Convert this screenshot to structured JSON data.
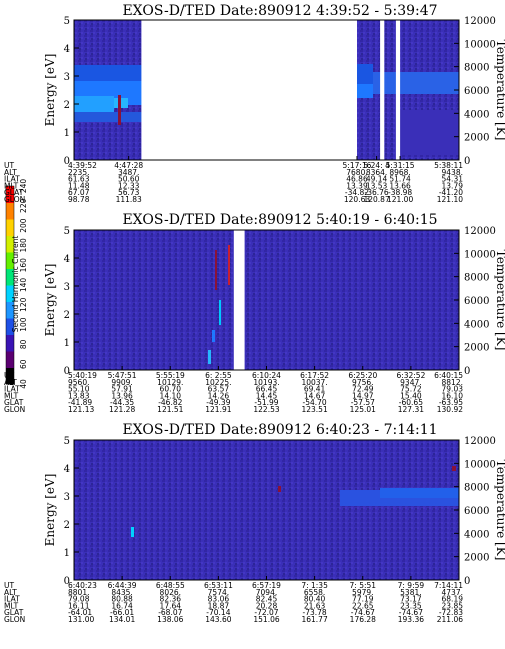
{
  "colorbar": {
    "label": "Second Harmonic Current",
    "ticks": [
      "40",
      "60",
      "80",
      "100",
      "120",
      "140",
      "160",
      "180",
      "200",
      "220",
      "240"
    ],
    "colors": [
      "#000000",
      "#5a0070",
      "#3a14b4",
      "#1e50e6",
      "#1e96ff",
      "#00d2ff",
      "#00e678",
      "#64f000",
      "#d2f000",
      "#ffd200",
      "#ff8200",
      "#ff0000"
    ]
  },
  "chart_data": [
    {
      "type": "heatmap",
      "title": "EXOS-D/TED   Date:890912  4:39:52 - 5:39:47",
      "ylabel": "Energy [eV]",
      "y2label": "Temperature [K]",
      "ylim": [
        0,
        5
      ],
      "y2lim": [
        0,
        12000
      ],
      "yticks": [
        "0",
        "1",
        "2",
        "3",
        "4",
        "5"
      ],
      "y2ticks": [
        "0",
        "2000",
        "4000",
        "6000",
        "8000",
        "10000",
        "12000"
      ],
      "data_gaps_fraction": [
        [
          0.175,
          0.735
        ],
        [
          0.795,
          0.806
        ],
        [
          0.836,
          0.847
        ]
      ],
      "x_tick_fractions": [
        0.0,
        0.142,
        0.735,
        0.786,
        0.847,
        1.0
      ],
      "orbit_table": {
        "row_labels": [
          "UT",
          "ALT",
          "ILAT",
          "MLT",
          "GLAT",
          "GLON"
        ],
        "columns": [
          [
            "4:39:52",
            "2235.",
            "61.63",
            "11.48",
            "67.07",
            "98.78"
          ],
          [
            "4:47:28",
            "3487.",
            "50.60",
            "12.33",
            "56.73",
            "111.83"
          ],
          [
            "5:17:16",
            "7680.",
            "46.86",
            "13.39",
            "-34.82",
            "120.63"
          ],
          [
            "5:24: 4",
            "8364.",
            "49.14",
            "13.53",
            "-36.76",
            "120.87"
          ],
          [
            "5:31:15",
            "8968.",
            "51.74",
            "13.66",
            "-38.98",
            "121.00"
          ],
          [
            "5:38:11",
            "9438.",
            "54.31",
            "13.79",
            "-41.20",
            "121.10"
          ]
        ]
      }
    },
    {
      "type": "heatmap",
      "title": "EXOS-D/TED   Date:890912  5:40:19 - 6:40:15",
      "ylabel": "Energy [eV]",
      "y2label": "Temperature [K]",
      "ylim": [
        0,
        5
      ],
      "y2lim": [
        0,
        12000
      ],
      "yticks": [
        "0",
        "1",
        "2",
        "3",
        "4",
        "5"
      ],
      "y2ticks": [
        "0",
        "2000",
        "4000",
        "6000",
        "8000",
        "10000",
        "12000"
      ],
      "data_gaps_fraction": [
        [
          0.415,
          0.443
        ]
      ],
      "x_tick_fractions": [
        0.0,
        0.125,
        0.25,
        0.375,
        0.5,
        0.625,
        0.75,
        0.875,
        1.0
      ],
      "orbit_table": {
        "row_labels": [
          "UT",
          "ALT",
          "ILAT",
          "MLT",
          "GLAT",
          "GLON"
        ],
        "columns": [
          [
            "5:40:19",
            "9560.",
            "55.10",
            "13.83",
            "-41.89",
            "121.13"
          ],
          [
            "5:47:51",
            "9909.",
            "57.91",
            "13.96",
            "-44.35",
            "121.28"
          ],
          [
            "5:55:19",
            "10129.",
            "60.70",
            "14.10",
            "-46.82",
            "121.51"
          ],
          [
            "6: 2:55",
            "10225.",
            "63.57",
            "14.26",
            "-49.39",
            "121.91"
          ],
          [
            "6:10:24",
            "10193.",
            "66.45",
            "14.45",
            "-51.99",
            "122.53"
          ],
          [
            "6:17:52",
            "10037.",
            "69.41",
            "14.67",
            "-54.70",
            "123.51"
          ],
          [
            "6:25:20",
            "9756.",
            "72.49",
            "14.97",
            "-57.57",
            "125.01"
          ],
          [
            "6:32:52",
            "9347.",
            "75.72",
            "15.40",
            "-60.65",
            "127.31"
          ],
          [
            "6:40:15",
            "8812.",
            "79.03",
            "16.10",
            "-63.95",
            "130.92"
          ]
        ]
      }
    },
    {
      "type": "heatmap",
      "title": "EXOS-D/TED   Date:890912  6:40:23 - 7:14:11",
      "ylabel": "Energy [eV]",
      "y2label": "Temperature [K]",
      "ylim": [
        0,
        5
      ],
      "y2lim": [
        0,
        12000
      ],
      "yticks": [
        "0",
        "1",
        "2",
        "3",
        "4",
        "5"
      ],
      "y2ticks": [
        "0",
        "2000",
        "4000",
        "6000",
        "8000",
        "10000",
        "12000"
      ],
      "data_gaps_fraction": [],
      "x_tick_fractions": [
        0.0,
        0.125,
        0.25,
        0.375,
        0.5,
        0.625,
        0.75,
        0.875,
        1.0
      ],
      "orbit_table": {
        "row_labels": [
          "UT",
          "ALT",
          "ILAT",
          "MLT",
          "GLAT",
          "GLON"
        ],
        "columns": [
          [
            "6:40:23",
            "8801.",
            "79.08",
            "16.11",
            "-64.01",
            "131.00"
          ],
          [
            "6:44:39",
            "8435.",
            "80.88",
            "16.74",
            "-66.01",
            "134.01"
          ],
          [
            "6:48:55",
            "8026.",
            "82.36",
            "17.64",
            "-68.07",
            "138.06"
          ],
          [
            "6:53:11",
            "7574.",
            "83.06",
            "18.87",
            "-70.14",
            "143.60"
          ],
          [
            "6:57:19",
            "7094.",
            "82.45",
            "20.28",
            "-72.07",
            "151.06"
          ],
          [
            "7: 1:35",
            "6558.",
            "80.40",
            "21.63",
            "-73.78",
            "161.77"
          ],
          [
            "7: 5:51",
            "5979.",
            "77.19",
            "22.65",
            "-74.67",
            "176.28"
          ],
          [
            "7: 9:59",
            "5381.",
            "73.17",
            "23.35",
            "-74.67",
            "193.36"
          ],
          [
            "7:14:11",
            "4737.",
            "68.19",
            "23.85",
            "-72.83",
            "211.06"
          ]
        ]
      }
    }
  ]
}
